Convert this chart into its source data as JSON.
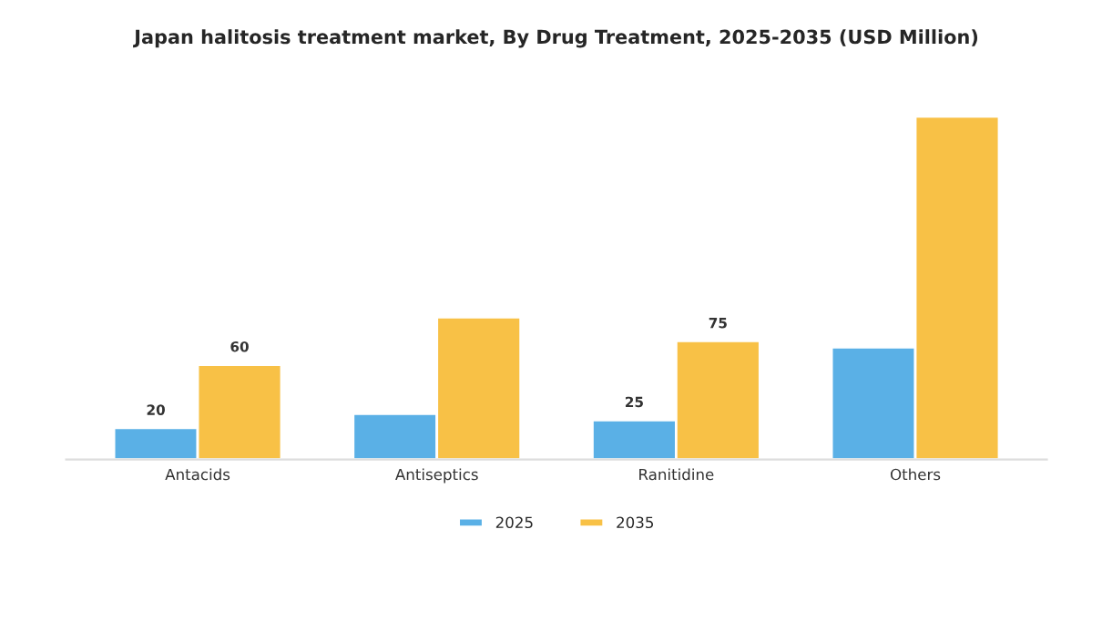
{
  "chart_data": {
    "type": "bar",
    "title": "Japan halitosis treatment market, By Drug Treatment, 2025-2035 (USD Million)",
    "categories": [
      "Antacids",
      "Antiseptics",
      "Ranitidine",
      "Others"
    ],
    "series": [
      {
        "name": "2025",
        "color": "#5ab0e6",
        "values": [
          20,
          29,
          25,
          71
        ],
        "value_labels": [
          "20",
          null,
          "25",
          null
        ]
      },
      {
        "name": "2035",
        "color": "#f8c146",
        "values": [
          60,
          90,
          75,
          217
        ],
        "value_labels": [
          "60",
          null,
          "75",
          null
        ]
      }
    ],
    "legend": "bottom",
    "grid": false
  }
}
